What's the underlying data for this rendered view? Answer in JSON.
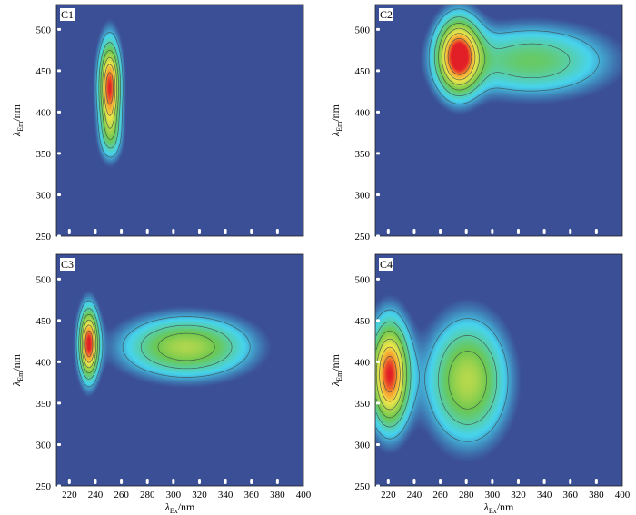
{
  "chart_data": [
    {
      "type": "heatmap",
      "label": "C1",
      "xlabel": {
        "symbol": "λ",
        "sub": "Ex",
        "unit": "/nm"
      },
      "ylabel": {
        "symbol": "λ",
        "sub": "Em",
        "unit": "/nm"
      },
      "xlim": [
        210,
        400
      ],
      "ylim": [
        250,
        530
      ],
      "xticks": [],
      "yticks": [
        250,
        300,
        350,
        400,
        450,
        500
      ],
      "peaks": [
        {
          "ex": 251,
          "em": 430,
          "ex_sd": 5.5,
          "em_sd": 36,
          "intensity": 1.0
        },
        {
          "ex": 252,
          "em": 370,
          "ex_sd": 6,
          "em_sd": 20,
          "intensity": 0.25
        }
      ],
      "contour_levels": [
        0.18,
        0.32,
        0.46,
        0.6,
        0.74,
        0.88
      ]
    },
    {
      "type": "heatmap",
      "label": "C2",
      "xlabel": {
        "symbol": "λ",
        "sub": "Ex",
        "unit": "/nm"
      },
      "ylabel": {
        "symbol": "λ",
        "sub": "Em",
        "unit": "/nm"
      },
      "xlim": [
        210,
        400
      ],
      "ylim": [
        250,
        530
      ],
      "xticks": [],
      "yticks": [
        250,
        300,
        350,
        400,
        450,
        500
      ],
      "peaks": [
        {
          "ex": 274,
          "em": 468,
          "ex_sd": 11,
          "em_sd": 30,
          "intensity": 1.0
        },
        {
          "ex": 330,
          "em": 462,
          "ex_sd": 40,
          "em_sd": 28,
          "intensity": 0.42
        }
      ],
      "contour_levels": [
        0.18,
        0.32,
        0.46,
        0.6,
        0.74,
        0.88
      ]
    },
    {
      "type": "heatmap",
      "label": "C3",
      "xlabel": {
        "symbol": "λ",
        "sub": "Ex",
        "unit": "/nm"
      },
      "ylabel": {
        "symbol": "λ",
        "sub": "Em",
        "unit": "/nm"
      },
      "xlim": [
        210,
        400
      ],
      "ylim": [
        250,
        530
      ],
      "xticks": [
        220,
        240,
        260,
        280,
        300,
        320,
        340,
        360,
        380,
        400
      ],
      "yticks": [
        250,
        300,
        350,
        400,
        450,
        500
      ],
      "peaks": [
        {
          "ex": 235,
          "em": 422,
          "ex_sd": 5,
          "em_sd": 28,
          "intensity": 1.0
        },
        {
          "ex": 310,
          "em": 418,
          "ex_sd": 32,
          "em_sd": 24,
          "intensity": 0.58
        }
      ],
      "contour_levels": [
        0.18,
        0.32,
        0.46,
        0.6,
        0.74,
        0.88
      ]
    },
    {
      "type": "heatmap",
      "label": "C4",
      "xlabel": {
        "symbol": "λ",
        "sub": "Ex",
        "unit": "/nm"
      },
      "ylabel": {
        "symbol": "λ",
        "sub": "Em",
        "unit": "/nm"
      },
      "xlim": [
        210,
        400
      ],
      "ylim": [
        250,
        530
      ],
      "xticks": [
        220,
        240,
        260,
        280,
        300,
        320,
        340,
        360,
        380,
        400
      ],
      "yticks": [
        250,
        300,
        350,
        400,
        450,
        500
      ],
      "peaks": [
        {
          "ex": 221,
          "em": 385,
          "ex_sd": 10,
          "em_sd": 42,
          "intensity": 1.0
        },
        {
          "ex": 281,
          "em": 378,
          "ex_sd": 20,
          "em_sd": 48,
          "intensity": 0.6
        }
      ],
      "contour_levels": [
        0.18,
        0.32,
        0.46,
        0.6,
        0.74,
        0.88
      ]
    }
  ],
  "colors": {
    "background": "#3b4f96",
    "cyan": "#47d4ee",
    "green": "#6cc84f",
    "yellow": "#f2e64a",
    "orange": "#f59a2e",
    "red": "#e21f26",
    "contour": "#3c4e4e"
  }
}
